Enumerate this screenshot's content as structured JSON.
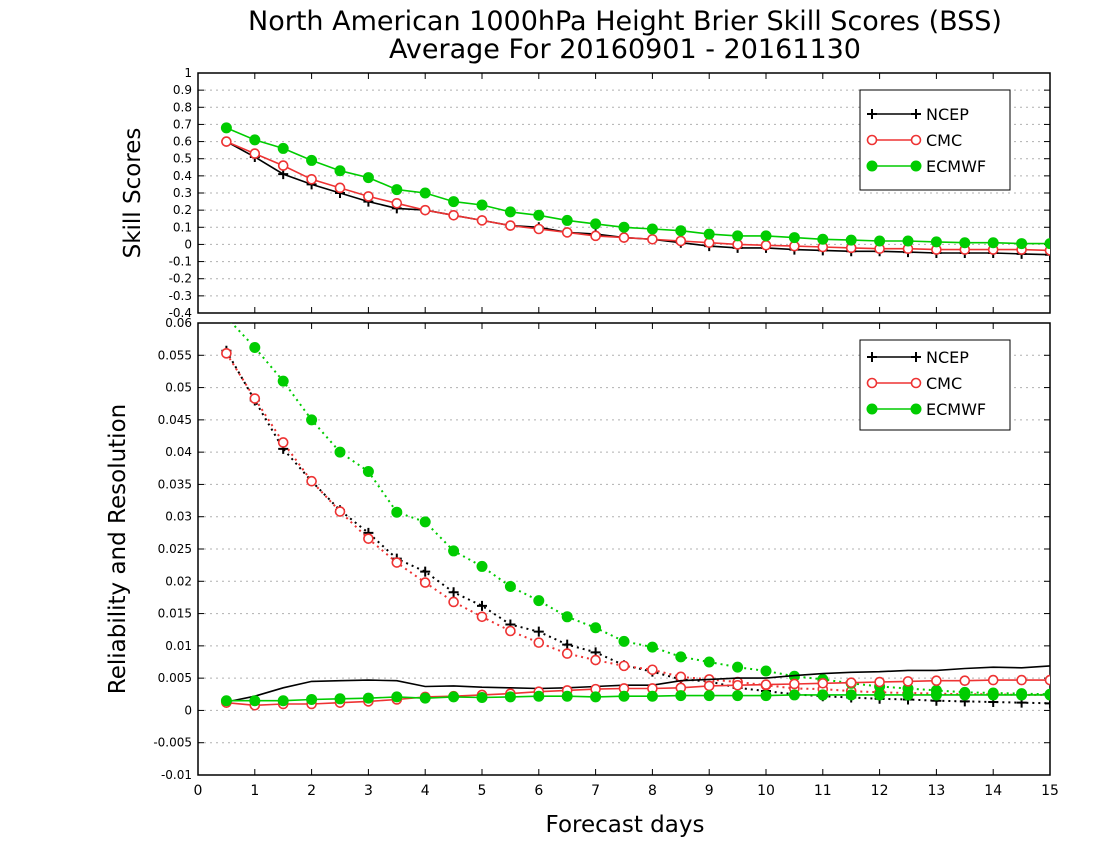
{
  "title": {
    "line1": "North American 1000hPa Height Brier Skill Scores (BSS)",
    "line2": "Average For 20160901 - 20161130"
  },
  "xlabel": "Forecast days",
  "colors": {
    "NCEP": "#000000",
    "CMC": "#ee3333",
    "ECMWF": "#00cc00"
  },
  "legend_labels": [
    "NCEP",
    "CMC",
    "ECMWF"
  ],
  "chart_data": [
    {
      "type": "line",
      "ylabel": "Skill Scores",
      "xlim": [
        0,
        15
      ],
      "ylim": [
        -0.4,
        1
      ],
      "yticks": [
        "-0.4",
        "-0.3",
        "-0.2",
        "-0.1",
        "0",
        "0.1",
        "0.2",
        "0.3",
        "0.4",
        "0.5",
        "0.6",
        "0.7",
        "0.8",
        "0.9",
        "1"
      ],
      "ytick_values": [
        -0.4,
        -0.3,
        -0.2,
        -0.1,
        0,
        0.1,
        0.2,
        0.3,
        0.4,
        0.5,
        0.6,
        0.7,
        0.8,
        0.9,
        1
      ],
      "legend_position": "top-right",
      "grid": true,
      "x": [
        0.5,
        1,
        1.5,
        2,
        2.5,
        3,
        3.5,
        4,
        4.5,
        5,
        5.5,
        6,
        6.5,
        7,
        7.5,
        8,
        8.5,
        9,
        9.5,
        10,
        10.5,
        11,
        11.5,
        12,
        12.5,
        13,
        13.5,
        14,
        14.5,
        15
      ],
      "series": [
        {
          "name": "NCEP",
          "style": "solid",
          "marker": "plus",
          "values": [
            0.6,
            0.51,
            0.41,
            0.35,
            0.3,
            0.25,
            0.21,
            0.2,
            0.17,
            0.14,
            0.11,
            0.1,
            0.07,
            0.06,
            0.04,
            0.03,
            0.01,
            -0.01,
            -0.02,
            -0.02,
            -0.03,
            -0.035,
            -0.04,
            -0.04,
            -0.045,
            -0.05,
            -0.05,
            -0.05,
            -0.055,
            -0.06
          ]
        },
        {
          "name": "CMC",
          "style": "solid",
          "marker": "circle",
          "values": [
            0.6,
            0.53,
            0.46,
            0.38,
            0.33,
            0.28,
            0.24,
            0.2,
            0.17,
            0.14,
            0.11,
            0.09,
            0.07,
            0.05,
            0.04,
            0.03,
            0.02,
            0.01,
            0.0,
            -0.005,
            -0.01,
            -0.015,
            -0.02,
            -0.025,
            -0.025,
            -0.03,
            -0.03,
            -0.03,
            -0.03,
            -0.035
          ]
        },
        {
          "name": "ECMWF",
          "style": "solid",
          "marker": "filled-circle",
          "values": [
            0.68,
            0.61,
            0.56,
            0.49,
            0.43,
            0.39,
            0.32,
            0.3,
            0.25,
            0.23,
            0.19,
            0.17,
            0.14,
            0.12,
            0.1,
            0.09,
            0.08,
            0.06,
            0.05,
            0.05,
            0.04,
            0.03,
            0.025,
            0.02,
            0.02,
            0.015,
            0.01,
            0.01,
            0.005,
            0.005
          ]
        }
      ]
    },
    {
      "type": "line",
      "ylabel": "Reliability and Resolution",
      "xlim": [
        0,
        15
      ],
      "ylim": [
        -0.01,
        0.06
      ],
      "yticks": [
        "-0.01",
        "-0.005",
        "0",
        "0.005",
        "0.01",
        "0.015",
        "0.02",
        "0.025",
        "0.03",
        "0.035",
        "0.04",
        "0.045",
        "0.05",
        "0.055",
        "0.06"
      ],
      "ytick_values": [
        -0.01,
        -0.005,
        0,
        0.005,
        0.01,
        0.015,
        0.02,
        0.025,
        0.03,
        0.035,
        0.04,
        0.045,
        0.05,
        0.055,
        0.06
      ],
      "xticks": [
        "0",
        "1",
        "2",
        "3",
        "4",
        "5",
        "6",
        "7",
        "8",
        "9",
        "10",
        "11",
        "12",
        "13",
        "14",
        "15"
      ],
      "legend_position": "top-right",
      "grid": true,
      "x": [
        0.5,
        1,
        1.5,
        2,
        2.5,
        3,
        3.5,
        4,
        4.5,
        5,
        5.5,
        6,
        6.5,
        7,
        7.5,
        8,
        8.5,
        9,
        9.5,
        10,
        10.5,
        11,
        11.5,
        12,
        12.5,
        13,
        13.5,
        14,
        14.5,
        15
      ],
      "series": [
        {
          "name": "NCEP",
          "component": "resolution",
          "style": "dotted",
          "marker": "plus",
          "values": [
            0.0557,
            0.048,
            0.0405,
            0.0355,
            0.031,
            0.0275,
            0.0235,
            0.0215,
            0.0183,
            0.0162,
            0.0133,
            0.0122,
            0.0102,
            0.009,
            0.007,
            0.006,
            0.0048,
            0.0045,
            0.0035,
            0.003,
            0.0025,
            0.0022,
            0.002,
            0.0018,
            0.0017,
            0.0015,
            0.0014,
            0.0013,
            0.0012,
            0.0011
          ]
        },
        {
          "name": "CMC",
          "component": "resolution",
          "style": "dotted",
          "marker": "circle",
          "values": [
            0.0553,
            0.0483,
            0.0415,
            0.0355,
            0.0308,
            0.0266,
            0.0229,
            0.0198,
            0.0168,
            0.0145,
            0.0123,
            0.0105,
            0.0088,
            0.0078,
            0.0069,
            0.0063,
            0.0052,
            0.0048,
            0.0044,
            0.0039,
            0.0034,
            0.0033,
            0.003,
            0.0028,
            0.0027,
            0.0026,
            0.0025,
            0.0025,
            0.0024,
            0.0024
          ]
        },
        {
          "name": "ECMWF",
          "component": "resolution",
          "style": "dotted",
          "marker": "filled-circle",
          "values": [
            0.0609,
            0.0562,
            0.051,
            0.045,
            0.04,
            0.037,
            0.0307,
            0.0292,
            0.0247,
            0.0223,
            0.0192,
            0.017,
            0.0145,
            0.0128,
            0.0107,
            0.0098,
            0.0083,
            0.0075,
            0.0067,
            0.0061,
            0.0053,
            0.0048,
            0.0042,
            0.0037,
            0.0034,
            0.0031,
            0.0028,
            0.0027,
            0.0026,
            0.0025
          ]
        },
        {
          "name": "NCEP",
          "component": "reliability",
          "style": "solid",
          "marker": "none",
          "values": [
            0.0013,
            0.0022,
            0.0035,
            0.0045,
            0.0046,
            0.0047,
            0.0046,
            0.0037,
            0.0038,
            0.0036,
            0.0035,
            0.0034,
            0.0035,
            0.0037,
            0.0039,
            0.0039,
            0.0046,
            0.0048,
            0.005,
            0.005,
            0.0054,
            0.0057,
            0.0059,
            0.006,
            0.0062,
            0.0062,
            0.0065,
            0.0067,
            0.0066,
            0.0069
          ]
        },
        {
          "name": "CMC",
          "component": "reliability",
          "style": "solid",
          "marker": "circle",
          "values": [
            0.0012,
            0.0008,
            0.001,
            0.001,
            0.0012,
            0.0014,
            0.0017,
            0.0021,
            0.0022,
            0.0024,
            0.0026,
            0.0029,
            0.0031,
            0.0033,
            0.0034,
            0.0034,
            0.0035,
            0.0038,
            0.0039,
            0.004,
            0.0041,
            0.0042,
            0.0043,
            0.0044,
            0.0045,
            0.0046,
            0.0046,
            0.0047,
            0.0047,
            0.0047
          ]
        },
        {
          "name": "ECMWF",
          "component": "reliability",
          "style": "solid",
          "marker": "filled-circle",
          "values": [
            0.0015,
            0.0015,
            0.0015,
            0.0017,
            0.0018,
            0.0019,
            0.0021,
            0.0019,
            0.0021,
            0.002,
            0.0021,
            0.0022,
            0.0022,
            0.0021,
            0.0022,
            0.0022,
            0.0023,
            0.0023,
            0.0023,
            0.0023,
            0.0024,
            0.0024,
            0.0024,
            0.0024,
            0.0024,
            0.0024,
            0.0024,
            0.0024,
            0.0024,
            0.0024
          ]
        }
      ]
    }
  ]
}
